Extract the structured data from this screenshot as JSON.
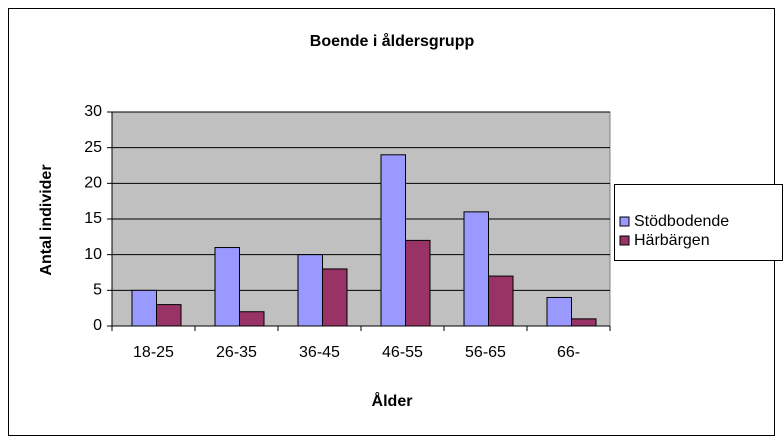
{
  "chart_data": {
    "type": "bar",
    "title": "Boende i åldersgrupp",
    "x_label": "Ålder",
    "y_label": "Antal individer",
    "categories": [
      "18-25",
      "26-35",
      "36-45",
      "46-55",
      "56-65",
      "66-"
    ],
    "series": [
      {
        "name": "Stödbodende",
        "color": "#9999ff",
        "values": [
          5,
          11,
          10,
          24,
          16,
          4
        ]
      },
      {
        "name": "Härbärgen",
        "color": "#993366",
        "values": [
          3,
          2,
          8,
          12,
          7,
          1
        ]
      }
    ],
    "ylim": [
      0,
      30
    ],
    "yticks": [
      0,
      5,
      10,
      15,
      20,
      25,
      30
    ],
    "grid": true,
    "legend": "right"
  }
}
